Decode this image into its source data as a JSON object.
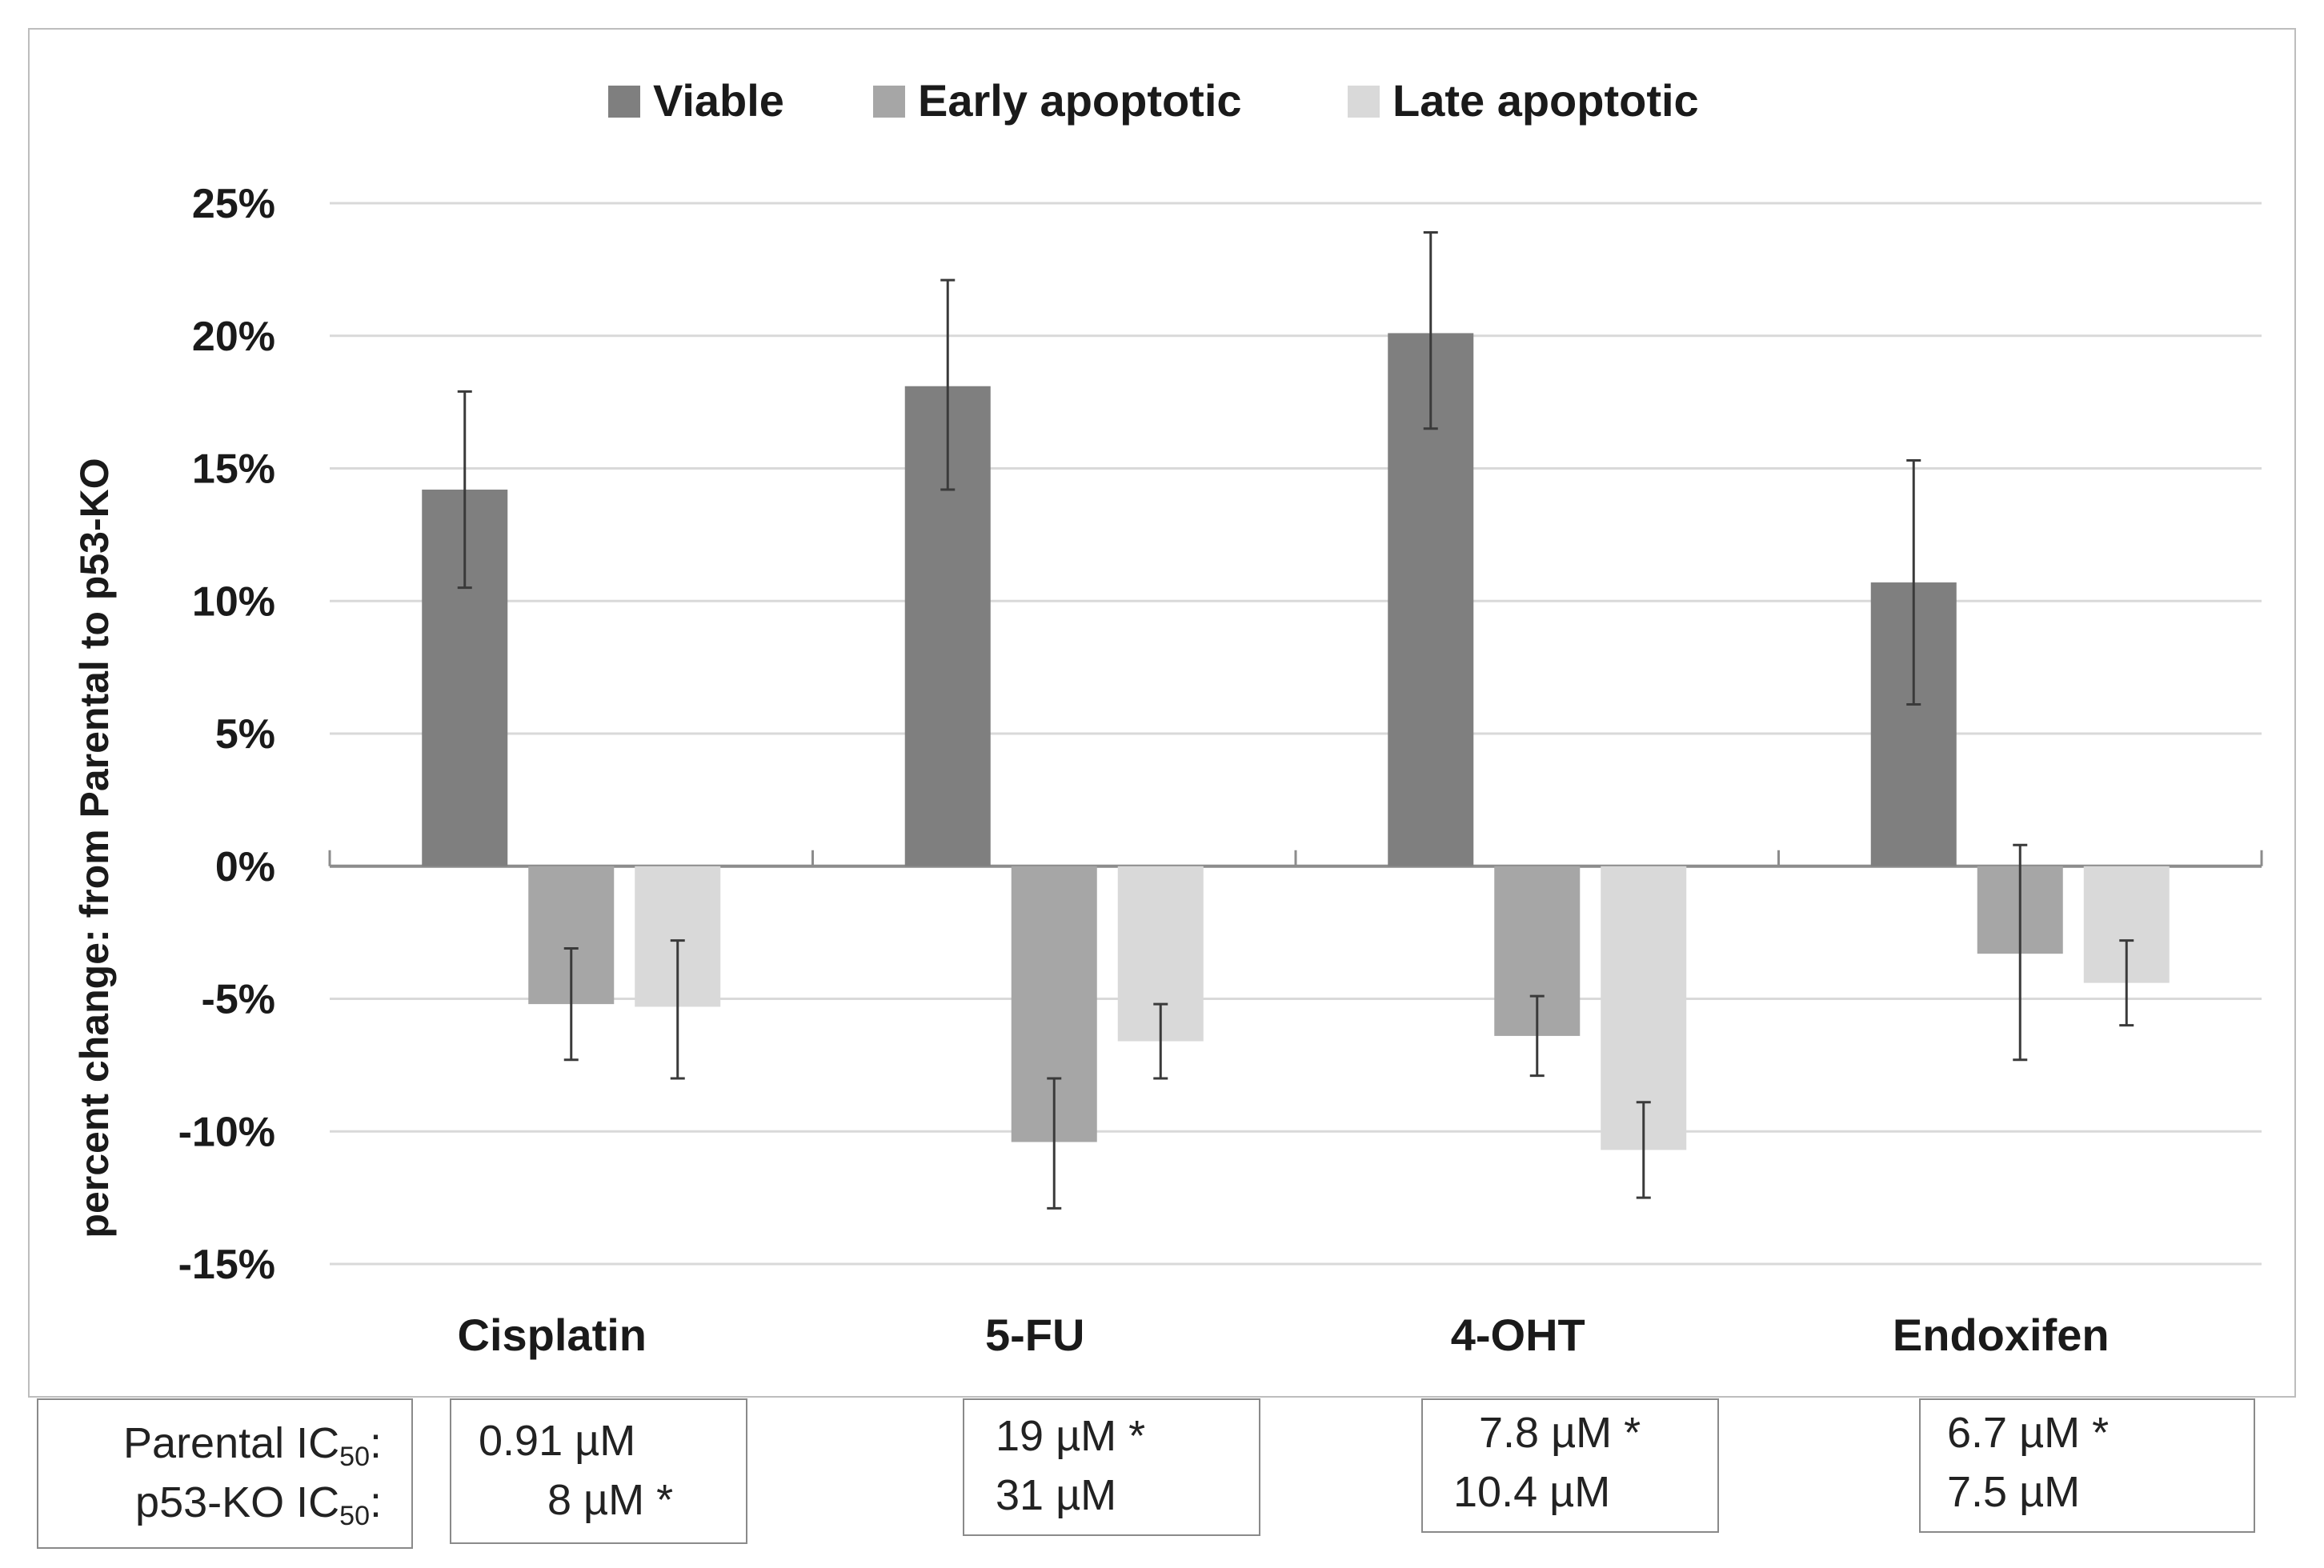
{
  "chart_data": {
    "type": "bar",
    "title": "",
    "ylabel": "percent change: from Parental to p53-KO",
    "xlabel": "",
    "ylim": [
      -15,
      25
    ],
    "yticks": [
      25,
      20,
      15,
      10,
      5,
      0,
      -5,
      -10,
      -15
    ],
    "ytick_labels": [
      "25%",
      "20%",
      "15%",
      "10%",
      "5%",
      "0%",
      "-5%",
      "-10%",
      "-15%"
    ],
    "grid": true,
    "legend_position": "top",
    "categories": [
      "Cisplatin",
      "5-FU",
      "4-OHT",
      "Endoxifen"
    ],
    "series": [
      {
        "name": "Viable",
        "color": "#7f7f7f",
        "values": [
          14.2,
          18.1,
          20.1,
          10.7
        ],
        "error_low": [
          10.5,
          14.2,
          16.5,
          6.1
        ],
        "error_high": [
          17.9,
          22.1,
          23.9,
          15.3
        ]
      },
      {
        "name": "Early apoptotic",
        "color": "#a6a6a6",
        "values": [
          -5.2,
          -10.4,
          -6.4,
          -3.3
        ],
        "error_low": [
          -7.3,
          -12.9,
          -7.9,
          -7.3
        ],
        "error_high": [
          -3.1,
          -8.0,
          -4.9,
          0.8
        ]
      },
      {
        "name": "Late apoptotic",
        "color": "#d9d9d9",
        "values": [
          -5.3,
          -6.6,
          -10.7,
          -4.4
        ],
        "error_low": [
          -8.0,
          -8.0,
          -12.5,
          -6.0
        ],
        "error_high": [
          -2.8,
          -5.2,
          -8.9,
          -2.8
        ]
      }
    ]
  },
  "ic50_table": {
    "row_labels": {
      "parental": "Parental IC",
      "p53ko": "p53-KO IC",
      "subscript": "50",
      "suffix": ":"
    },
    "values": [
      {
        "drug": "Cisplatin",
        "parental": "0.91 µM",
        "p53ko": "8 µM *"
      },
      {
        "drug": "5-FU",
        "parental": "19 µM *",
        "p53ko": "31 µM"
      },
      {
        "drug": "4-OHT",
        "parental": "7.8 µM *",
        "p53ko": "10.4 µM"
      },
      {
        "drug": "Endoxifen",
        "parental": "6.7 µM *",
        "p53ko": "7.5 µM"
      }
    ]
  }
}
